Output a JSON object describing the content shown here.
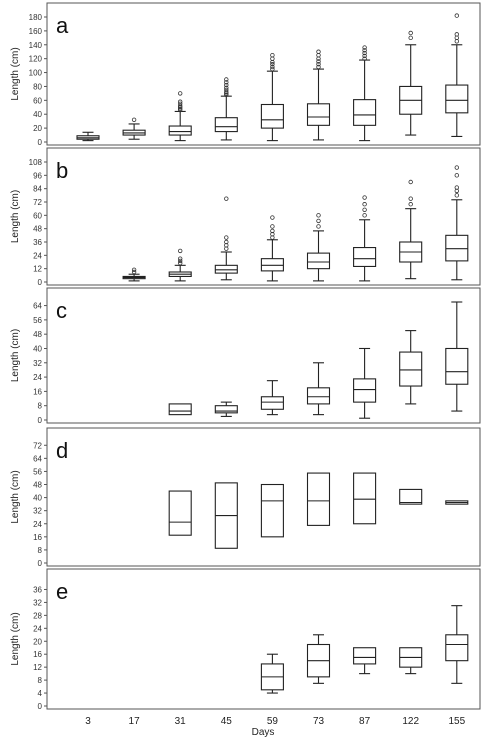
{
  "chart_data": {
    "type": "box",
    "x_categories": [
      "3",
      "17",
      "31",
      "45",
      "59",
      "73",
      "87",
      "122",
      "155"
    ],
    "xlabel": "Days",
    "panels": [
      {
        "label": "a",
        "ylabel": "Length (cm)",
        "ylim": [
          0,
          180
        ],
        "yticks": [
          0,
          20,
          40,
          60,
          80,
          100,
          120,
          140,
          160,
          180
        ],
        "boxes": [
          {
            "x": "3",
            "min": 2,
            "q1": 4,
            "median": 6,
            "q3": 9,
            "max": 14,
            "outliers": []
          },
          {
            "x": "17",
            "min": 4,
            "q1": 10,
            "median": 13,
            "q3": 17,
            "max": 26,
            "outliers": [
              32
            ]
          },
          {
            "x": "31",
            "min": 2,
            "q1": 10,
            "median": 15,
            "q3": 23,
            "max": 44,
            "outliers": [
              46,
              48,
              50,
              52,
              55,
              58,
              70
            ]
          },
          {
            "x": "45",
            "min": 3,
            "q1": 15,
            "median": 22,
            "q3": 35,
            "max": 66,
            "outliers": [
              68,
              70,
              72,
              75,
              78,
              82,
              86,
              90
            ]
          },
          {
            "x": "59",
            "min": 2,
            "q1": 20,
            "median": 32,
            "q3": 54,
            "max": 102,
            "outliers": [
              105,
              108,
              112,
              115,
              120,
              125
            ]
          },
          {
            "x": "73",
            "min": 3,
            "q1": 24,
            "median": 36,
            "q3": 55,
            "max": 105,
            "outliers": [
              108,
              112,
              116,
              120,
              125,
              130
            ]
          },
          {
            "x": "87",
            "min": 2,
            "q1": 24,
            "median": 39,
            "q3": 61,
            "max": 118,
            "outliers": [
              120,
              124,
              128,
              132,
              136
            ]
          },
          {
            "x": "122",
            "min": 10,
            "q1": 40,
            "median": 60,
            "q3": 80,
            "max": 140,
            "outliers": [
              150,
              157
            ]
          },
          {
            "x": "155",
            "min": 8,
            "q1": 42,
            "median": 60,
            "q3": 82,
            "max": 140,
            "outliers": [
              145,
              150,
              155,
              182
            ]
          }
        ]
      },
      {
        "label": "b",
        "ylabel": "Length (cm)",
        "ylim": [
          0,
          108
        ],
        "yticks": [
          0,
          12,
          24,
          36,
          48,
          60,
          72,
          84,
          96,
          108
        ],
        "boxes": [
          {
            "x": "17",
            "min": 1,
            "q1": 3,
            "median": 4,
            "q3": 5,
            "max": 7,
            "outliers": [
              9,
              11
            ]
          },
          {
            "x": "31",
            "min": 1,
            "q1": 5,
            "median": 7,
            "q3": 9,
            "max": 15,
            "outliers": [
              17,
              19,
              21,
              28
            ]
          },
          {
            "x": "45",
            "min": 2,
            "q1": 8,
            "median": 11,
            "q3": 15,
            "max": 27,
            "outliers": [
              30,
              33,
              36,
              40,
              75
            ]
          },
          {
            "x": "59",
            "min": 1,
            "q1": 10,
            "median": 15,
            "q3": 21,
            "max": 38,
            "outliers": [
              40,
              43,
              46,
              50,
              58
            ]
          },
          {
            "x": "73",
            "min": 1,
            "q1": 12,
            "median": 18,
            "q3": 26,
            "max": 46,
            "outliers": [
              50,
              55,
              60
            ]
          },
          {
            "x": "87",
            "min": 1,
            "q1": 14,
            "median": 21,
            "q3": 31,
            "max": 56,
            "outliers": [
              60,
              65,
              70,
              76
            ]
          },
          {
            "x": "122",
            "min": 3,
            "q1": 18,
            "median": 27,
            "q3": 36,
            "max": 66,
            "outliers": [
              70,
              75,
              90
            ]
          },
          {
            "x": "155",
            "min": 2,
            "q1": 19,
            "median": 30,
            "q3": 42,
            "max": 74,
            "outliers": [
              78,
              82,
              85,
              96,
              103
            ]
          }
        ]
      },
      {
        "label": "c",
        "ylabel": "Length (cm)",
        "ylim": [
          0,
          66
        ],
        "yticks": [
          0,
          8,
          16,
          24,
          32,
          40,
          48,
          56,
          64
        ],
        "boxes": [
          {
            "x": "31",
            "min": 3,
            "q1": 3,
            "median": 5,
            "q3": 9,
            "max": 9,
            "outliers": []
          },
          {
            "x": "45",
            "min": 2,
            "q1": 4,
            "median": 5,
            "q3": 8,
            "max": 10,
            "outliers": []
          },
          {
            "x": "59",
            "min": 3,
            "q1": 6,
            "median": 10,
            "q3": 13,
            "max": 22,
            "outliers": []
          },
          {
            "x": "73",
            "min": 3,
            "q1": 9,
            "median": 13,
            "q3": 18,
            "max": 32,
            "outliers": []
          },
          {
            "x": "87",
            "min": 1,
            "q1": 10,
            "median": 17,
            "q3": 23,
            "max": 40,
            "outliers": []
          },
          {
            "x": "122",
            "min": 9,
            "q1": 19,
            "median": 28,
            "q3": 38,
            "max": 50,
            "outliers": []
          },
          {
            "x": "155",
            "min": 5,
            "q1": 20,
            "median": 27,
            "q3": 40,
            "max": 66,
            "outliers": []
          }
        ]
      },
      {
        "label": "d",
        "ylabel": "Length (cm)",
        "ylim": [
          0,
          74
        ],
        "yticks": [
          0,
          8,
          16,
          24,
          32,
          40,
          48,
          56,
          64,
          72
        ],
        "boxes": [
          {
            "x": "31",
            "min": 17,
            "q1": 17,
            "median": 25,
            "q3": 44,
            "max": 44,
            "outliers": []
          },
          {
            "x": "45",
            "min": 9,
            "q1": 9,
            "median": 29,
            "q3": 49,
            "max": 49,
            "outliers": []
          },
          {
            "x": "59",
            "min": 16,
            "q1": 16,
            "median": 38,
            "q3": 48,
            "max": 48,
            "outliers": []
          },
          {
            "x": "73",
            "min": 23,
            "q1": 23,
            "median": 38,
            "q3": 55,
            "max": 55,
            "outliers": []
          },
          {
            "x": "87",
            "min": 24,
            "q1": 24,
            "median": 39,
            "q3": 55,
            "max": 55,
            "outliers": []
          },
          {
            "x": "122",
            "min": 36,
            "q1": 36,
            "median": 37,
            "q3": 45,
            "max": 45,
            "outliers": []
          },
          {
            "x": "155",
            "min": 36,
            "q1": 36,
            "median": 37,
            "q3": 38,
            "max": 38,
            "outliers": []
          }
        ]
      },
      {
        "label": "e",
        "ylabel": "Length (cm)",
        "ylim": [
          0,
          38
        ],
        "yticks": [
          0,
          4,
          8,
          12,
          16,
          20,
          24,
          28,
          32,
          36
        ],
        "boxes": [
          {
            "x": "59",
            "min": 4,
            "q1": 5,
            "median": 9,
            "q3": 13,
            "max": 16,
            "outliers": []
          },
          {
            "x": "73",
            "min": 7,
            "q1": 9,
            "median": 14,
            "q3": 19,
            "max": 22,
            "outliers": []
          },
          {
            "x": "87",
            "min": 10,
            "q1": 13,
            "median": 15,
            "q3": 18,
            "max": 18,
            "outliers": []
          },
          {
            "x": "122",
            "min": 10,
            "q1": 12,
            "median": 15,
            "q3": 18,
            "max": 18,
            "outliers": []
          },
          {
            "x": "155",
            "min": 7,
            "q1": 14,
            "median": 19,
            "q3": 22,
            "max": 31,
            "outliers": []
          }
        ]
      }
    ],
    "grid": false,
    "legend": "none"
  },
  "colors": {
    "box_stroke": "#222222",
    "frame": "#555555",
    "outlier": "#333333"
  }
}
